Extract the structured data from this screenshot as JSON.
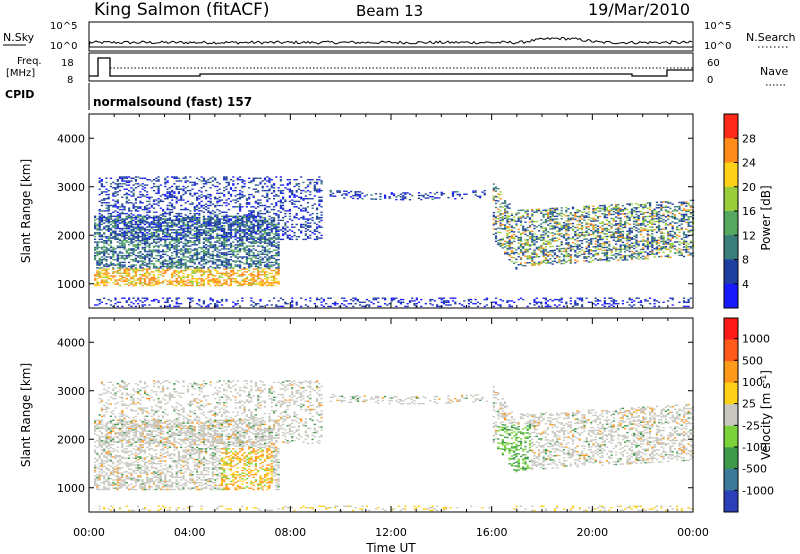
{
  "header": {
    "station": "King Salmon (fitACF)",
    "beam": "Beam 13",
    "date": "19/Mar/2010"
  },
  "status_panel": {
    "nsky_label": "N.Sky",
    "nsearch_label": "N.Search",
    "nsky_ticks": [
      "10^5",
      "10^0"
    ],
    "nsearch_ticks": [
      "10^5",
      "10^0"
    ],
    "freq_label_line1": "Freq.",
    "freq_label_line2": "[MHz]",
    "freq_ticks": [
      "18",
      "8"
    ],
    "nave_label": "Nave",
    "nave_ticks": [
      "60",
      "0"
    ],
    "cpid_label": "CPID",
    "cpid_value": "normalsound (fast) 157"
  },
  "chart_data": [
    {
      "type": "heatmap",
      "name": "power",
      "ylabel": "Slant Range [km]",
      "ylim": [
        500,
        4500
      ],
      "yticks": [
        1000,
        2000,
        3000,
        4000
      ],
      "xlim_hours": [
        0,
        24
      ],
      "colorbar_label": "Power [dB]",
      "colorbar_ticks": [
        "4",
        "8",
        "12",
        "16",
        "20",
        "24",
        "28"
      ],
      "colorbar_colors": [
        "#1a1aff",
        "#1f3fa0",
        "#3a7d7a",
        "#55a860",
        "#9acd3a",
        "#ffd21a",
        "#ff8c1a",
        "#ff2a1a"
      ],
      "echo_regions": [
        {
          "t0": 0.2,
          "t1": 7.5,
          "r0": 950,
          "r1": 2400,
          "level": "high"
        },
        {
          "t0": 0.3,
          "t1": 9.2,
          "r0": 1900,
          "r1": 3200,
          "level": "low"
        },
        {
          "t0": 9.5,
          "t1": 15.8,
          "r0": 2700,
          "r1": 3000,
          "level": "low"
        },
        {
          "t0": 16.0,
          "t1": 24.0,
          "r0": 1100,
          "r1": 3300,
          "level": "medium"
        }
      ]
    },
    {
      "type": "heatmap",
      "name": "velocity",
      "ylabel": "Slant Range [km]",
      "ylim": [
        500,
        4500
      ],
      "yticks": [
        1000,
        2000,
        3000,
        4000
      ],
      "xlim_hours": [
        0,
        24
      ],
      "xticks": [
        "00:00",
        "04:00",
        "08:00",
        "12:00",
        "16:00",
        "20:00",
        "00:00"
      ],
      "xlabel": "Time UT",
      "colorbar_label": "Velocity [m s-1]",
      "colorbar_ticks": [
        "1000",
        "500",
        "100",
        "25",
        "-25",
        "-100",
        "-500",
        "-1000"
      ],
      "colorbar_colors": [
        "#2a3fb8",
        "#3c7a9a",
        "#3c9a4a",
        "#7bd23a",
        "#c8c8c0",
        "#ffd21a",
        "#ff9a1a",
        "#ff5a1a",
        "#ff1a1a"
      ]
    }
  ]
}
